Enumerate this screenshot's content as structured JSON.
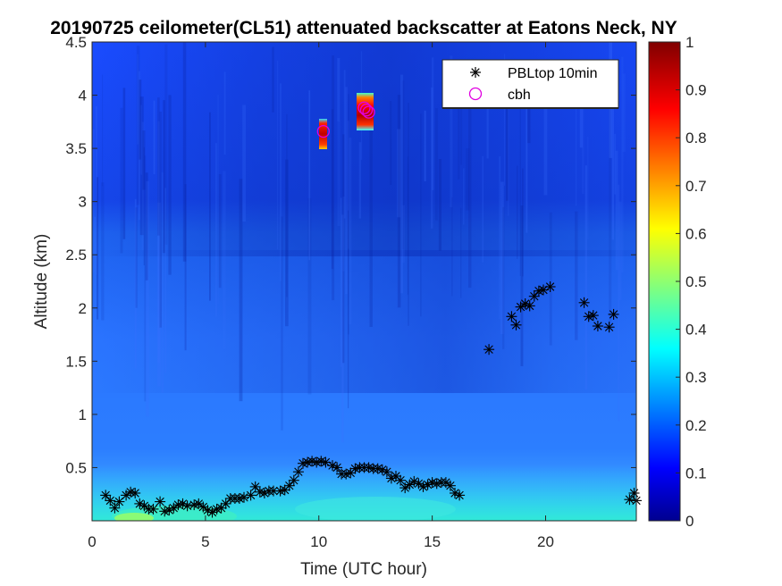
{
  "chart_data": {
    "type": "heatmap",
    "title": "20190725 ceilometer(CL51) attenuated backscatter at Eatons Neck, NY",
    "xlabel": "Time (UTC hour)",
    "ylabel": "Altitude (km)",
    "xlim": [
      0,
      24
    ],
    "ylim": [
      0,
      4.5
    ],
    "xticks": [
      "0",
      "5",
      "10",
      "15",
      "20"
    ],
    "yticks": [
      "0.5",
      "1",
      "1.5",
      "2",
      "2.5",
      "3",
      "3.5",
      "4",
      "4.5"
    ],
    "colorbar": {
      "range": [
        0,
        1
      ],
      "ticks": [
        "0",
        "0.1",
        "0.2",
        "0.3",
        "0.4",
        "0.5",
        "0.6",
        "0.7",
        "0.8",
        "0.9",
        "1"
      ]
    },
    "legend": {
      "placement": "top-right",
      "entries": [
        {
          "label": "PBLtop 10min",
          "marker": "asterisk",
          "color": "#000000"
        },
        {
          "label": "cbh",
          "marker": "circle",
          "color": "#e000e0"
        }
      ]
    },
    "series": [
      {
        "name": "PBLtop 10min",
        "points": [
          [
            0.6,
            0.24
          ],
          [
            0.8,
            0.19
          ],
          [
            1.0,
            0.12
          ],
          [
            1.2,
            0.18
          ],
          [
            1.5,
            0.24
          ],
          [
            1.7,
            0.27
          ],
          [
            1.9,
            0.26
          ],
          [
            2.1,
            0.16
          ],
          [
            2.3,
            0.14
          ],
          [
            2.5,
            0.11
          ],
          [
            2.7,
            0.11
          ],
          [
            3.0,
            0.18
          ],
          [
            3.2,
            0.09
          ],
          [
            3.4,
            0.1
          ],
          [
            3.6,
            0.12
          ],
          [
            3.8,
            0.15
          ],
          [
            4.0,
            0.16
          ],
          [
            4.2,
            0.14
          ],
          [
            4.5,
            0.15
          ],
          [
            4.7,
            0.16
          ],
          [
            4.9,
            0.13
          ],
          [
            5.1,
            0.1
          ],
          [
            5.3,
            0.08
          ],
          [
            5.5,
            0.11
          ],
          [
            5.7,
            0.12
          ],
          [
            5.9,
            0.16
          ],
          [
            6.1,
            0.21
          ],
          [
            6.3,
            0.21
          ],
          [
            6.5,
            0.21
          ],
          [
            6.7,
            0.22
          ],
          [
            7.0,
            0.24
          ],
          [
            7.2,
            0.32
          ],
          [
            7.4,
            0.27
          ],
          [
            7.6,
            0.26
          ],
          [
            7.8,
            0.28
          ],
          [
            8.0,
            0.28
          ],
          [
            8.3,
            0.28
          ],
          [
            8.5,
            0.29
          ],
          [
            8.7,
            0.33
          ],
          [
            8.9,
            0.38
          ],
          [
            9.1,
            0.46
          ],
          [
            9.3,
            0.54
          ],
          [
            9.5,
            0.55
          ],
          [
            9.7,
            0.56
          ],
          [
            9.9,
            0.55
          ],
          [
            10.1,
            0.56
          ],
          [
            10.3,
            0.55
          ],
          [
            10.6,
            0.52
          ],
          [
            10.8,
            0.5
          ],
          [
            11.0,
            0.44
          ],
          [
            11.2,
            0.44
          ],
          [
            11.4,
            0.45
          ],
          [
            11.6,
            0.49
          ],
          [
            11.8,
            0.5
          ],
          [
            12.0,
            0.5
          ],
          [
            12.2,
            0.5
          ],
          [
            12.4,
            0.49
          ],
          [
            12.6,
            0.49
          ],
          [
            12.8,
            0.48
          ],
          [
            13.0,
            0.46
          ],
          [
            13.2,
            0.4
          ],
          [
            13.4,
            0.42
          ],
          [
            13.6,
            0.38
          ],
          [
            13.8,
            0.31
          ],
          [
            14.0,
            0.34
          ],
          [
            14.2,
            0.37
          ],
          [
            14.4,
            0.35
          ],
          [
            14.6,
            0.32
          ],
          [
            14.8,
            0.34
          ],
          [
            15.0,
            0.36
          ],
          [
            15.2,
            0.35
          ],
          [
            15.4,
            0.36
          ],
          [
            15.6,
            0.36
          ],
          [
            15.8,
            0.33
          ],
          [
            16.0,
            0.26
          ],
          [
            16.2,
            0.24
          ],
          [
            17.5,
            1.61
          ],
          [
            18.5,
            1.92
          ],
          [
            18.7,
            1.84
          ],
          [
            18.9,
            2.01
          ],
          [
            19.1,
            2.04
          ],
          [
            19.3,
            2.02
          ],
          [
            19.5,
            2.11
          ],
          [
            19.7,
            2.16
          ],
          [
            19.9,
            2.17
          ],
          [
            20.2,
            2.2
          ],
          [
            21.7,
            2.05
          ],
          [
            21.9,
            1.92
          ],
          [
            22.1,
            1.93
          ],
          [
            22.3,
            1.83
          ],
          [
            22.8,
            1.82
          ],
          [
            23.0,
            1.94
          ],
          [
            23.7,
            0.2
          ],
          [
            23.9,
            0.26
          ],
          [
            24.0,
            0.19
          ]
        ]
      },
      {
        "name": "cbh",
        "points": [
          [
            10.2,
            3.66
          ],
          [
            12.0,
            3.88
          ],
          [
            12.1,
            3.86
          ],
          [
            12.2,
            3.84
          ]
        ]
      }
    ]
  }
}
